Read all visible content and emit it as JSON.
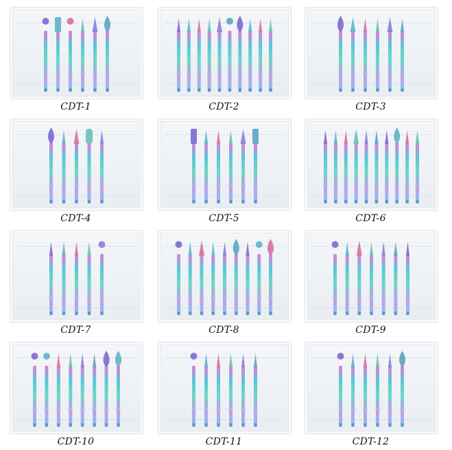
{
  "products": [
    {
      "label": "CDT-1",
      "bits": [
        "ball",
        "cylinder",
        "ball",
        "needle",
        "cone",
        "flame"
      ]
    },
    {
      "label": "CDT-2",
      "bits": [
        "needle",
        "needle",
        "needle",
        "needle",
        "cone",
        "ball",
        "flame",
        "needle",
        "needle",
        "needle"
      ]
    },
    {
      "label": "CDT-3",
      "bits": [
        "flame",
        "cone",
        "needle",
        "needle",
        "cone",
        "needle"
      ]
    },
    {
      "label": "CDT-4",
      "bits": [
        "flame",
        "needle",
        "cone",
        "barrel",
        "needle"
      ]
    },
    {
      "label": "CDT-5",
      "bits": [
        "cylinder",
        "needle",
        "needle",
        "needle",
        "cone",
        "cylinder"
      ]
    },
    {
      "label": "CDT-6",
      "bits": [
        "needle",
        "needle",
        "needle",
        "cone",
        "needle",
        "needle",
        "needle",
        "flame",
        "needle",
        "needle"
      ]
    },
    {
      "label": "CDT-7",
      "bits": [
        "needle",
        "needle",
        "needle",
        "needle",
        "ball"
      ]
    },
    {
      "label": "CDT-8",
      "bits": [
        "ball",
        "needle",
        "cone",
        "needle",
        "needle",
        "flame",
        "needle",
        "ball",
        "flame"
      ]
    },
    {
      "label": "CDT-9",
      "bits": [
        "ball",
        "needle",
        "cone",
        "needle",
        "needle",
        "needle",
        "needle"
      ]
    },
    {
      "label": "CDT-10",
      "bits": [
        "ball",
        "ball",
        "needle",
        "needle",
        "needle",
        "needle",
        "flame",
        "flame"
      ]
    },
    {
      "label": "CDT-11",
      "bits": [
        "ball",
        "needle",
        "needle",
        "needle",
        "needle",
        "needle"
      ]
    },
    {
      "label": "CDT-12",
      "bits": [
        "ball",
        "needle",
        "needle",
        "needle",
        "needle",
        "flame"
      ]
    }
  ],
  "colors": {
    "shank_stops": [
      "#e27ad8",
      "#59c8d8",
      "#6fd6c4",
      "#c39be8",
      "#7fc7f0"
    ],
    "head_colors": [
      "#7a6ad0",
      "#5bb6c8",
      "#d86fa0",
      "#6ac0b8",
      "#8a7fd8",
      "#5aa5c0"
    ],
    "label": "#111111"
  }
}
